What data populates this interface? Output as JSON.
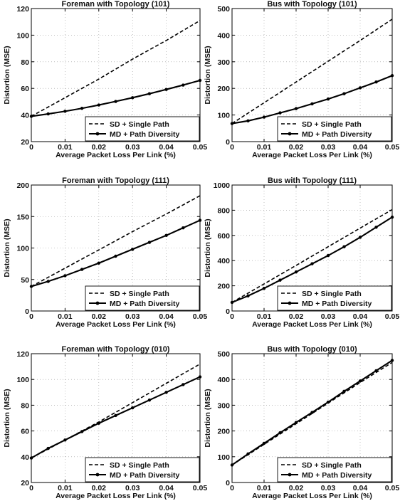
{
  "chart_data": [
    {
      "type": "line",
      "title": "Foreman with Topology (101)",
      "xlabel": "Average Packet Loss Per Link (%)",
      "ylabel": "Distortion (MSE)",
      "xlim": [
        0,
        0.05
      ],
      "ylim": [
        20,
        120
      ],
      "xticks": [
        0,
        0.01,
        0.02,
        0.03,
        0.04,
        0.05
      ],
      "xtick_labels": [
        "0",
        "0.01",
        "0.02",
        "0.03",
        "0.04",
        "0.05"
      ],
      "yticks": [
        20,
        40,
        60,
        80,
        100,
        120
      ],
      "ytick_labels": [
        "20",
        "40",
        "60",
        "80",
        "100",
        "120"
      ],
      "grid": true,
      "legend": "bottom-right",
      "series": [
        {
          "name": "SD + Single Path",
          "style": "dashed",
          "marker": "none",
          "x": [
            0,
            0.01,
            0.02,
            0.03,
            0.04,
            0.05
          ],
          "values": [
            39,
            53,
            67,
            82,
            96,
            111
          ]
        },
        {
          "name": "MD + Path Diversity",
          "style": "solid",
          "marker": "dot",
          "x": [
            0,
            0.005,
            0.01,
            0.015,
            0.02,
            0.025,
            0.03,
            0.035,
            0.04,
            0.045,
            0.05
          ],
          "values": [
            39,
            40.8,
            42.8,
            45,
            47.5,
            50.2,
            53,
            56,
            59.2,
            62.5,
            66
          ]
        }
      ]
    },
    {
      "type": "line",
      "title": "Bus with Topology (101)",
      "xlabel": "Average Packet Loss Per Link (%)",
      "ylabel": "Distortion (MSE)",
      "xlim": [
        0,
        0.05
      ],
      "ylim": [
        0,
        500
      ],
      "xticks": [
        0,
        0.01,
        0.02,
        0.03,
        0.04,
        0.05
      ],
      "xtick_labels": [
        "0",
        "0.01",
        "0.02",
        "0.03",
        "0.04",
        "0.05"
      ],
      "yticks": [
        0,
        100,
        200,
        300,
        400,
        500
      ],
      "ytick_labels": [
        "0",
        "100",
        "200",
        "300",
        "400",
        "500"
      ],
      "grid": true,
      "legend": "bottom-right",
      "series": [
        {
          "name": "SD + Single Path",
          "style": "dashed",
          "marker": "none",
          "x": [
            0,
            0.01,
            0.02,
            0.03,
            0.04,
            0.05
          ],
          "values": [
            68,
            146,
            224,
            302,
            380,
            460
          ]
        },
        {
          "name": "MD + Path Diversity",
          "style": "solid",
          "marker": "dot",
          "x": [
            0,
            0.005,
            0.01,
            0.015,
            0.02,
            0.025,
            0.03,
            0.035,
            0.04,
            0.045,
            0.05
          ],
          "values": [
            68,
            78,
            92,
            108,
            124,
            142,
            160,
            180,
            202,
            224,
            248
          ]
        }
      ]
    },
    {
      "type": "line",
      "title": "Foreman with Topology (111)",
      "xlabel": "Average Packet Loss Per Link (%)",
      "ylabel": "Distortion (MSE)",
      "xlim": [
        0,
        0.05
      ],
      "ylim": [
        0,
        200
      ],
      "xticks": [
        0,
        0.01,
        0.02,
        0.03,
        0.04,
        0.05
      ],
      "xtick_labels": [
        "0",
        "0.01",
        "0.02",
        "0.03",
        "0.04",
        "0.05"
      ],
      "yticks": [
        0,
        50,
        100,
        150,
        200
      ],
      "ytick_labels": [
        "0",
        "50",
        "100",
        "150",
        "200"
      ],
      "grid": true,
      "legend": "bottom-right",
      "series": [
        {
          "name": "SD + Single Path",
          "style": "dashed",
          "marker": "none",
          "x": [
            0,
            0.01,
            0.02,
            0.03,
            0.04,
            0.05
          ],
          "values": [
            39,
            68,
            97,
            126,
            154,
            183
          ]
        },
        {
          "name": "MD + Path Diversity",
          "style": "solid",
          "marker": "dot",
          "x": [
            0,
            0.005,
            0.01,
            0.015,
            0.02,
            0.025,
            0.03,
            0.035,
            0.04,
            0.045,
            0.05
          ],
          "values": [
            39,
            47,
            56,
            66,
            76,
            87,
            98,
            109,
            120,
            132,
            144
          ]
        }
      ]
    },
    {
      "type": "line",
      "title": "Bus with Topology (111)",
      "xlabel": "Average Packet Loss Per Link (%)",
      "ylabel": "Distortion (MSE)",
      "xlim": [
        0,
        0.05
      ],
      "ylim": [
        0,
        1000
      ],
      "xticks": [
        0,
        0.01,
        0.02,
        0.03,
        0.04,
        0.05
      ],
      "xtick_labels": [
        "0",
        "0.01",
        "0.02",
        "0.03",
        "0.04",
        "0.05"
      ],
      "yticks": [
        0,
        200,
        400,
        600,
        800,
        1000
      ],
      "ytick_labels": [
        "0",
        "200",
        "400",
        "600",
        "800",
        "1000"
      ],
      "grid": true,
      "legend": "bottom-right",
      "series": [
        {
          "name": "SD + Single Path",
          "style": "dashed",
          "marker": "none",
          "x": [
            0,
            0.01,
            0.02,
            0.03,
            0.04,
            0.05
          ],
          "values": [
            68,
            215,
            362,
            510,
            658,
            805
          ]
        },
        {
          "name": "MD + Path Diversity",
          "style": "solid",
          "marker": "dot",
          "x": [
            0,
            0.005,
            0.01,
            0.015,
            0.02,
            0.025,
            0.03,
            0.035,
            0.04,
            0.045,
            0.05
          ],
          "values": [
            68,
            120,
            180,
            245,
            310,
            375,
            440,
            510,
            585,
            665,
            745
          ]
        }
      ]
    },
    {
      "type": "line",
      "title": "Foreman with Topology (010)",
      "xlabel": "Average Packet Loss Per Link (%)",
      "ylabel": "Distortion (MSE)",
      "xlim": [
        0,
        0.05
      ],
      "ylim": [
        20,
        120
      ],
      "xticks": [
        0,
        0.01,
        0.02,
        0.03,
        0.04,
        0.05
      ],
      "xtick_labels": [
        "0",
        "0.01",
        "0.02",
        "0.03",
        "0.04",
        "0.05"
      ],
      "yticks": [
        20,
        40,
        60,
        80,
        100,
        120
      ],
      "ytick_labels": [
        "20",
        "40",
        "60",
        "80",
        "100",
        "120"
      ],
      "grid": true,
      "legend": "bottom-right",
      "series": [
        {
          "name": "SD + Single Path",
          "style": "dashed",
          "marker": "none",
          "x": [
            0,
            0.01,
            0.02,
            0.03,
            0.04,
            0.05
          ],
          "values": [
            39,
            53,
            67,
            82,
            97,
            112
          ]
        },
        {
          "name": "MD + Path Diversity",
          "style": "solid",
          "marker": "dot",
          "x": [
            0,
            0.005,
            0.01,
            0.015,
            0.02,
            0.025,
            0.03,
            0.035,
            0.04,
            0.045,
            0.05
          ],
          "values": [
            39,
            46.5,
            53,
            59.5,
            66,
            72,
            78,
            84,
            90,
            96,
            102
          ]
        }
      ]
    },
    {
      "type": "line",
      "title": "Bus with Topology (010)",
      "xlabel": "Average Packet Loss Per Link (%)",
      "ylabel": "Distortion (MSE)",
      "xlim": [
        0,
        0.05
      ],
      "ylim": [
        0,
        500
      ],
      "xticks": [
        0,
        0.01,
        0.02,
        0.03,
        0.04,
        0.05
      ],
      "xtick_labels": [
        "0",
        "0.01",
        "0.02",
        "0.03",
        "0.04",
        "0.05"
      ],
      "yticks": [
        0,
        100,
        200,
        300,
        400,
        500
      ],
      "ytick_labels": [
        "0",
        "100",
        "200",
        "300",
        "400",
        "500"
      ],
      "grid": true,
      "legend": "bottom-right",
      "series": [
        {
          "name": "SD + Single Path",
          "style": "dashed",
          "marker": "none",
          "x": [
            0,
            0.01,
            0.02,
            0.03,
            0.04,
            0.05
          ],
          "values": [
            68,
            148,
            228,
            308,
            388,
            466
          ]
        },
        {
          "name": "MD + Path Diversity",
          "style": "solid",
          "marker": "dot",
          "x": [
            0,
            0.005,
            0.01,
            0.015,
            0.02,
            0.025,
            0.03,
            0.035,
            0.04,
            0.045,
            0.05
          ],
          "values": [
            68,
            111,
            152,
            193,
            233,
            272,
            312,
            354,
            394,
            434,
            474
          ]
        }
      ]
    }
  ]
}
